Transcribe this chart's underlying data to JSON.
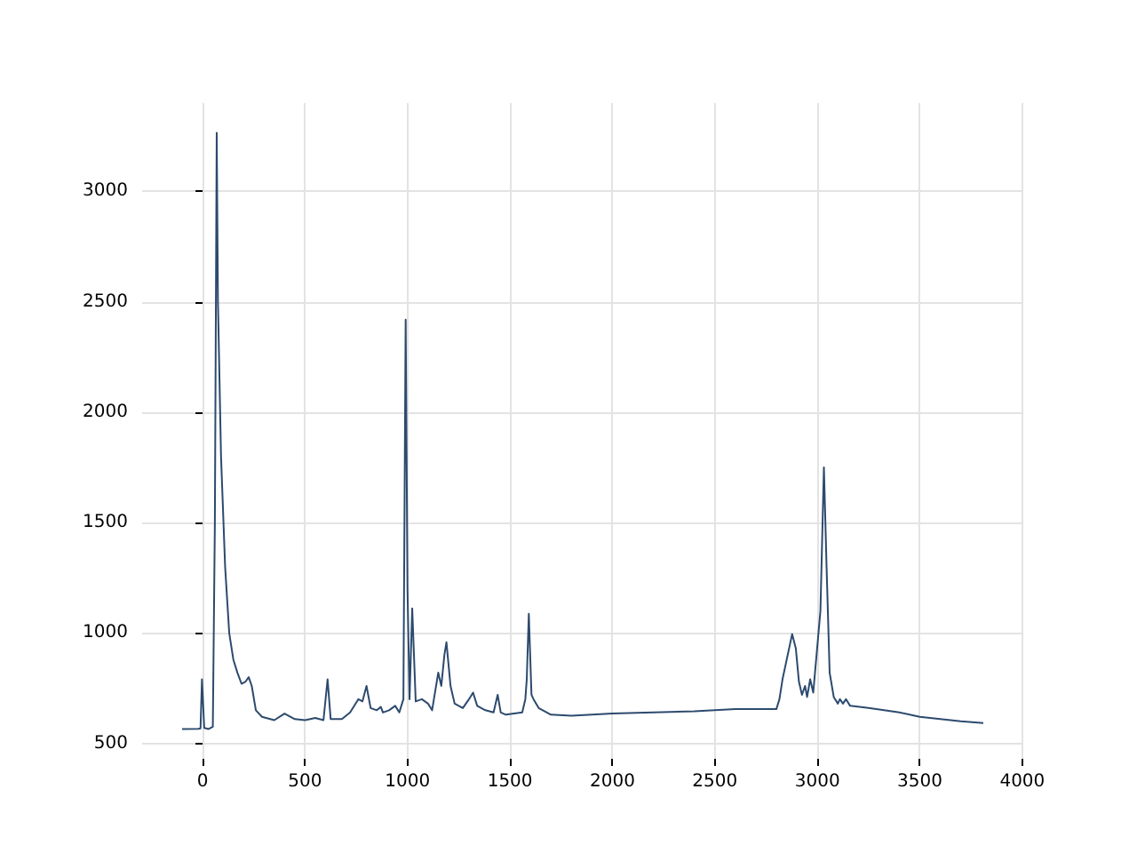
{
  "chart_data": {
    "type": "line",
    "x": [
      -100,
      -20,
      -10,
      -3,
      8,
      30,
      50,
      60,
      69,
      75,
      90,
      110,
      130,
      150,
      170,
      190,
      210,
      225,
      240,
      260,
      290,
      350,
      400,
      450,
      500,
      550,
      590,
      610,
      625,
      680,
      720,
      760,
      780,
      800,
      820,
      850,
      870,
      880,
      910,
      940,
      960,
      980,
      991,
      1000,
      1010,
      1023,
      1040,
      1070,
      1100,
      1120,
      1150,
      1165,
      1180,
      1190,
      1210,
      1230,
      1270,
      1300,
      1320,
      1340,
      1380,
      1420,
      1440,
      1455,
      1480,
      1560,
      1575,
      1582,
      1592,
      1605,
      1615,
      1640,
      1700,
      1800,
      2000,
      2200,
      2400,
      2600,
      2800,
      2815,
      2830,
      2877,
      2895,
      2910,
      2925,
      2940,
      2950,
      2965,
      2980,
      3015,
      3032,
      3045,
      3060,
      3080,
      3100,
      3110,
      3125,
      3140,
      3160,
      3250,
      3400,
      3500,
      3600,
      3700,
      3810
    ],
    "series": [
      {
        "color": "#2d4a6e",
        "values": [
          565,
          566,
          568,
          790,
          570,
          565,
          575,
          1500,
          3265,
          2500,
          1800,
          1300,
          1000,
          880,
          820,
          770,
          780,
          800,
          760,
          650,
          620,
          605,
          635,
          610,
          605,
          615,
          605,
          790,
          610,
          610,
          640,
          700,
          690,
          760,
          660,
          650,
          665,
          640,
          650,
          670,
          640,
          700,
          2419,
          1200,
          700,
          1111,
          690,
          700,
          680,
          650,
          820,
          760,
          900,
          958,
          760,
          680,
          660,
          700,
          730,
          670,
          650,
          640,
          720,
          640,
          630,
          640,
          700,
          790,
          1087,
          720,
          700,
          660,
          630,
          625,
          635,
          640,
          645,
          655,
          655,
          700,
          790,
          995,
          930,
          780,
          720,
          760,
          710,
          790,
          730,
          1100,
          1750,
          1300,
          820,
          710,
          680,
          700,
          680,
          700,
          670,
          660,
          640,
          620,
          610,
          600,
          592
        ]
      }
    ],
    "xlim": [
      -295,
      4005
    ],
    "ylim": [
      430,
      3400
    ],
    "xticks": [
      0,
      500,
      1000,
      1500,
      2000,
      2500,
      3000,
      3500,
      4000
    ],
    "yticks": [
      500,
      1000,
      1500,
      2000,
      2500,
      3000
    ],
    "grid": true,
    "marker": "none",
    "line_style": "solid"
  }
}
